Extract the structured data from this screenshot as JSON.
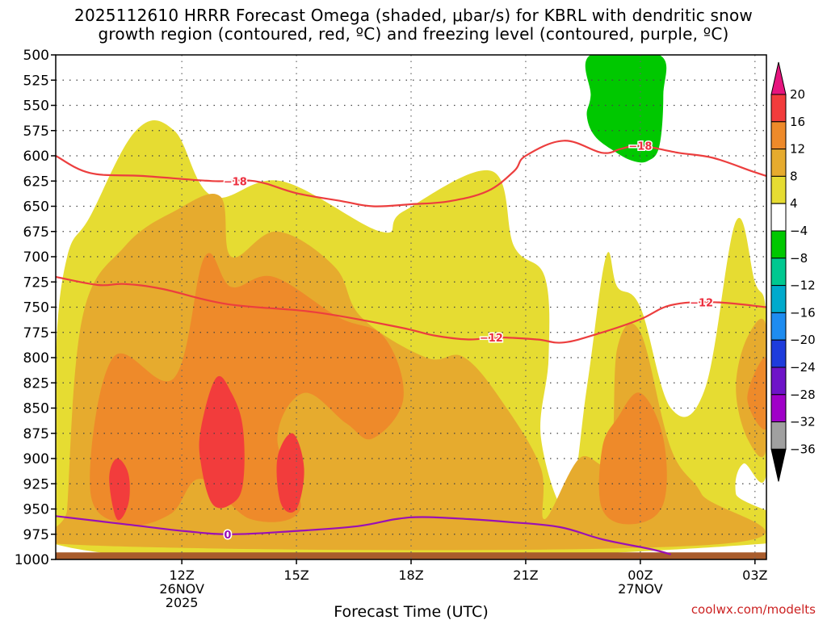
{
  "title": "2025112610 HRRR Forecast Omega (shaded, μbar/s) for KBRL with dendritic snow growth region (contoured, red, ºC) and freezing level (contoured, purple, ºC)",
  "credit": "coolwx.com/modelts",
  "chart_data": {
    "type": "time-height cross-section",
    "xlabel": "Forecast Time (UTC)",
    "ylabel": "",
    "y_axis_reversed": true,
    "ylim": [
      1000,
      500
    ],
    "y_ticks": [
      500,
      525,
      550,
      575,
      600,
      625,
      650,
      675,
      700,
      725,
      750,
      775,
      800,
      825,
      850,
      875,
      900,
      925,
      950,
      975,
      1000
    ],
    "x_range_hours": [
      -3.3,
      15.3
    ],
    "x_ticks": [
      {
        "hour": 0,
        "label": "12Z",
        "sub": [
          "26NOV",
          "2025"
        ]
      },
      {
        "hour": 3,
        "label": "15Z",
        "sub": []
      },
      {
        "hour": 6,
        "label": "18Z",
        "sub": []
      },
      {
        "hour": 9,
        "label": "21Z",
        "sub": []
      },
      {
        "hour": 12,
        "label": "00Z",
        "sub": [
          "27NOV"
        ]
      },
      {
        "hour": 15,
        "label": "03Z",
        "sub": []
      }
    ],
    "grid": true,
    "colorbar": {
      "labels": [
        "20",
        "16",
        "12",
        "8",
        "4",
        "−4",
        "−8",
        "−12",
        "−16",
        "−20",
        "−24",
        "−28",
        "−32",
        "−36"
      ],
      "bins": [
        {
          "range": [
            16,
            20
          ],
          "color": "#f23c3c"
        },
        {
          "range": [
            12,
            16
          ],
          "color": "#ee8a2a"
        },
        {
          "range": [
            8,
            12
          ],
          "color": "#e6ab2e"
        },
        {
          "range": [
            4,
            8
          ],
          "color": "#e6dc32"
        },
        {
          "range": [
            -4,
            4
          ],
          "color": "#ffffff"
        },
        {
          "range": [
            -8,
            -4
          ],
          "color": "#00c800"
        },
        {
          "range": [
            -12,
            -8
          ],
          "color": "#00c890"
        },
        {
          "range": [
            -16,
            -12
          ],
          "color": "#00aacc"
        },
        {
          "range": [
            -20,
            -16
          ],
          "color": "#1e8cf0"
        },
        {
          "range": [
            -24,
            -20
          ],
          "color": "#1e3cdc"
        },
        {
          "range": [
            -28,
            -24
          ],
          "color": "#6e14c8"
        },
        {
          "range": [
            -32,
            -28
          ],
          "color": "#a000c8"
        },
        {
          "range": [
            -36,
            -32
          ],
          "color": "#a0a0a0"
        }
      ],
      "over_color": "#e6147e",
      "under_color": "#000000"
    },
    "omega_regions": [
      {
        "level": "4-8",
        "color": "#e6dc32",
        "points": [
          [
            -3.3,
            800
          ],
          [
            -3.0,
            700
          ],
          [
            -2.4,
            660
          ],
          [
            -1.2,
            575
          ],
          [
            -0.2,
            575
          ],
          [
            0.8,
            640
          ],
          [
            2.6,
            625
          ],
          [
            5.2,
            675
          ],
          [
            5.8,
            655
          ],
          [
            8.1,
            615
          ],
          [
            8.7,
            690
          ],
          [
            9.5,
            720
          ],
          [
            9.6,
            800
          ],
          [
            9.4,
            880
          ],
          [
            10.1,
            950
          ],
          [
            10.6,
            830
          ],
          [
            11.1,
            700
          ],
          [
            11.4,
            730
          ],
          [
            12.0,
            750
          ],
          [
            12.8,
            850
          ],
          [
            13.7,
            830
          ],
          [
            14.5,
            665
          ],
          [
            15.0,
            725
          ],
          [
            15.3,
            760
          ],
          [
            15.3,
            915
          ],
          [
            14.7,
            905
          ],
          [
            14.5,
            935
          ],
          [
            15.0,
            985
          ],
          [
            -3.3,
            985
          ]
        ]
      },
      {
        "level": "8-12",
        "color": "#e6ab2e",
        "points": [
          [
            -3.0,
            950
          ],
          [
            -2.6,
            760
          ],
          [
            -1.5,
            690
          ],
          [
            -0.2,
            655
          ],
          [
            1.0,
            640
          ],
          [
            1.3,
            700
          ],
          [
            2.5,
            675
          ],
          [
            4.0,
            710
          ],
          [
            4.7,
            760
          ],
          [
            6.4,
            800
          ],
          [
            7.4,
            800
          ],
          [
            8.5,
            850
          ],
          [
            9.4,
            910
          ],
          [
            9.5,
            960
          ],
          [
            10.4,
            900
          ],
          [
            11.2,
            900
          ],
          [
            11.4,
            790
          ],
          [
            12.0,
            775
          ],
          [
            12.8,
            890
          ],
          [
            13.6,
            935
          ],
          [
            14.0,
            985
          ],
          [
            -3.0,
            985
          ]
        ]
      },
      {
        "level": "8-12",
        "color": "#e6ab2e",
        "points": [
          [
            15.3,
            770
          ],
          [
            14.8,
            780
          ],
          [
            14.5,
            830
          ],
          [
            14.8,
            880
          ],
          [
            15.3,
            890
          ]
        ]
      },
      {
        "level": "12-16",
        "color": "#ee8a2a",
        "points": [
          [
            -2.4,
            930
          ],
          [
            -1.8,
            800
          ],
          [
            -0.2,
            820
          ],
          [
            0.6,
            700
          ],
          [
            1.3,
            730
          ],
          [
            2.4,
            720
          ],
          [
            4.1,
            760
          ],
          [
            5.3,
            780
          ],
          [
            5.8,
            840
          ],
          [
            5.0,
            880
          ],
          [
            4.3,
            865
          ],
          [
            3.2,
            835
          ],
          [
            2.5,
            880
          ],
          [
            3.1,
            950
          ],
          [
            1.8,
            960
          ],
          [
            0.5,
            920
          ],
          [
            -0.3,
            955
          ],
          [
            -1.5,
            965
          ]
        ]
      },
      {
        "level": "12-16",
        "color": "#ee8a2a",
        "points": [
          [
            11.0,
            890
          ],
          [
            11.4,
            860
          ],
          [
            12.0,
            835
          ],
          [
            12.6,
            880
          ],
          [
            12.6,
            945
          ],
          [
            11.8,
            965
          ],
          [
            11.0,
            950
          ]
        ]
      },
      {
        "level": "12-16",
        "color": "#ee8a2a",
        "points": [
          [
            15.3,
            800
          ],
          [
            14.8,
            840
          ],
          [
            15.3,
            870
          ]
        ]
      },
      {
        "level": "16-20",
        "color": "#f23c3c",
        "points": [
          [
            0.5,
            870
          ],
          [
            0.9,
            820
          ],
          [
            1.3,
            835
          ],
          [
            1.6,
            870
          ],
          [
            1.6,
            925
          ],
          [
            1.3,
            945
          ],
          [
            0.8,
            945
          ],
          [
            0.5,
            905
          ]
        ]
      },
      {
        "level": "16-20",
        "color": "#f23c3c",
        "points": [
          [
            2.5,
            900
          ],
          [
            2.9,
            875
          ],
          [
            3.2,
            910
          ],
          [
            3.0,
            950
          ],
          [
            2.6,
            945
          ]
        ]
      },
      {
        "level": "16-20",
        "color": "#f23c3c",
        "points": [
          [
            -1.9,
            920
          ],
          [
            -1.7,
            900
          ],
          [
            -1.4,
            915
          ],
          [
            -1.4,
            945
          ],
          [
            -1.7,
            960
          ]
        ]
      },
      {
        "level": "-8--4",
        "color": "#00c800",
        "points": [
          [
            10.7,
            500
          ],
          [
            12.5,
            500
          ],
          [
            12.6,
            540
          ],
          [
            12.5,
            590
          ],
          [
            12.2,
            605
          ],
          [
            11.8,
            605
          ],
          [
            11.3,
            595
          ],
          [
            10.8,
            580
          ],
          [
            10.6,
            560
          ],
          [
            10.7,
            540
          ]
        ]
      }
    ],
    "dgz_contours": [
      {
        "label": "−18",
        "points": [
          [
            -3.3,
            600
          ],
          [
            -2.4,
            617
          ],
          [
            -1.0,
            620
          ],
          [
            0.8,
            625
          ],
          [
            1.9,
            625
          ],
          [
            3.0,
            637
          ],
          [
            4.2,
            645
          ],
          [
            5.0,
            650
          ],
          [
            6.0,
            648
          ],
          [
            7.0,
            645
          ],
          [
            8.0,
            635
          ],
          [
            8.7,
            615
          ],
          [
            9.0,
            600
          ],
          [
            10.0,
            585
          ],
          [
            11.0,
            597
          ],
          [
            11.5,
            593
          ],
          [
            12.0,
            590
          ],
          [
            13.0,
            597
          ],
          [
            13.9,
            602
          ],
          [
            14.9,
            615
          ],
          [
            15.3,
            620
          ]
        ],
        "label_at": [
          1.4,
          625
        ]
      },
      {
        "label": "−18",
        "label_at": [
          12.0,
          590
        ],
        "points": []
      },
      {
        "label": "−12",
        "points": [
          [
            -3.3,
            720
          ],
          [
            -2.2,
            728
          ],
          [
            -1.5,
            727
          ],
          [
            -0.5,
            732
          ],
          [
            1.2,
            747
          ],
          [
            3.5,
            755
          ],
          [
            5.7,
            770
          ],
          [
            6.6,
            778
          ],
          [
            7.5,
            782
          ],
          [
            8.3,
            780
          ],
          [
            9.3,
            782
          ],
          [
            10.0,
            785
          ],
          [
            11.0,
            775
          ],
          [
            12.0,
            762
          ],
          [
            12.8,
            748
          ],
          [
            13.9,
            745
          ],
          [
            15.3,
            750
          ]
        ],
        "label_at": [
          8.1,
          780
        ]
      },
      {
        "label": "−12",
        "label_at": [
          13.6,
          745
        ],
        "points": []
      }
    ],
    "freezing_level_contours": [
      {
        "label": "0",
        "points": [
          [
            -3.3,
            957
          ],
          [
            -1.5,
            965
          ],
          [
            0.1,
            972
          ],
          [
            1.3,
            975
          ],
          [
            2.9,
            972
          ],
          [
            4.6,
            967
          ],
          [
            5.6,
            960
          ],
          [
            6.3,
            958
          ],
          [
            7.5,
            960
          ],
          [
            8.6,
            963
          ],
          [
            9.9,
            968
          ],
          [
            11.0,
            980
          ],
          [
            12.3,
            990
          ],
          [
            12.8,
            995
          ]
        ],
        "label_at": [
          1.2,
          975
        ]
      }
    ],
    "surface_band": {
      "color": "#a85c2c",
      "top_pressure": 993
    }
  }
}
